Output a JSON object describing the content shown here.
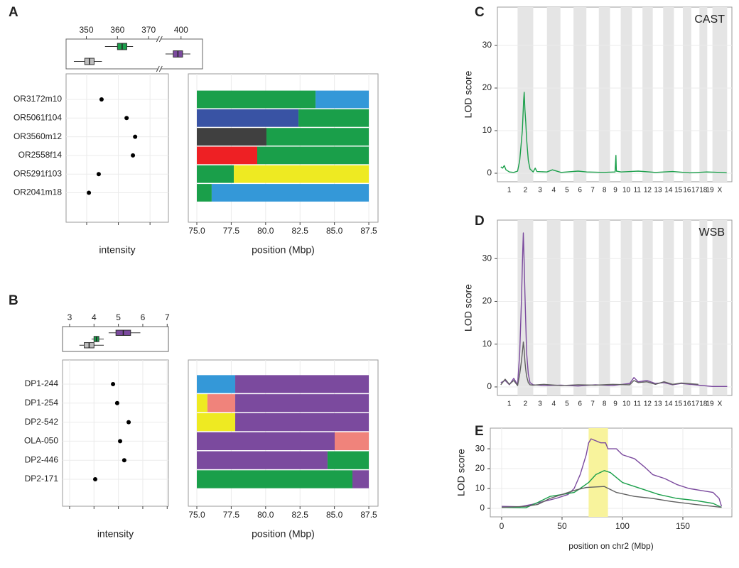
{
  "chart_data": [
    {
      "type": "box",
      "panel": "A",
      "xlim": [
        343.5,
        406.9
      ],
      "axis_break": [
        373,
        393.5
      ],
      "xticks": [
        350,
        360,
        370,
        400
      ],
      "boxes": [
        {
          "color": "#1a9f4a",
          "whisker_low": 356,
          "q1": 360,
          "median": 361.5,
          "q3": 363,
          "whisker_high": 365
        },
        {
          "color": "#7b4a9e",
          "whisker_low": 395,
          "q1": 397.5,
          "median": 399,
          "q3": 400.5,
          "whisker_high": 403
        },
        {
          "color": "#bdbdbd",
          "whisker_low": 346,
          "q1": 349.5,
          "median": 351,
          "q3": 352.5,
          "whisker_high": 355
        }
      ]
    },
    {
      "type": "dot",
      "xlim": [
        343.5,
        375.8
      ],
      "xlabel": "intensity",
      "categories": [
        "OR3172m10",
        "OR5061f104",
        "OR3560m12",
        "OR2558f14",
        "OR5291f103",
        "OR2041m18"
      ],
      "values": [
        354.7,
        362.6,
        365.3,
        364.6,
        353.8,
        350.7
      ]
    },
    {
      "type": "haplotype",
      "xlim": [
        74.38,
        88.17
      ],
      "xlabel": "position (Mbp)",
      "xticks": [
        {
          "value": 75,
          "label": "75.0"
        },
        77.5,
        {
          "value": 80,
          "label": "80.0"
        },
        82.5,
        {
          "value": 85,
          "label": "85.0"
        },
        87.5
      ],
      "rows": [
        {
          "segments": [
            {
              "color": "#1a9f4a",
              "start": 75,
              "end": 83.63
            },
            {
              "color": "#3498d8",
              "start": 83.63,
              "end": 87.5
            }
          ]
        },
        {
          "segments": [
            {
              "color": "#3953a4",
              "start": 75,
              "end": 82.39
            },
            {
              "color": "#1a9f4a",
              "start": 82.39,
              "end": 87.5
            }
          ]
        },
        {
          "segments": [
            {
              "color": "#404040",
              "start": 75,
              "end": 80.06
            },
            {
              "color": "#1a9f4a",
              "start": 80.06,
              "end": 87.5
            }
          ]
        },
        {
          "segments": [
            {
              "color": "#ee2024",
              "start": 75,
              "end": 79.39
            },
            {
              "color": "#1a9f4a",
              "start": 79.39,
              "end": 87.5
            }
          ]
        },
        {
          "segments": [
            {
              "color": "#1a9f4a",
              "start": 75,
              "end": 77.69
            },
            {
              "color": "#eeea22",
              "start": 77.69,
              "end": 87.5
            }
          ]
        },
        {
          "segments": [
            {
              "color": "#1a9f4a",
              "start": 75,
              "end": 76.08
            },
            {
              "color": "#3498d8",
              "start": 76.08,
              "end": 87.5
            }
          ]
        }
      ]
    },
    {
      "type": "box",
      "panel": "B",
      "xlim": [
        2.71,
        7.05
      ],
      "xticks": [
        3,
        4,
        5,
        6,
        7
      ],
      "boxes": [
        {
          "color": "#7b4a9e",
          "whisker_low": 4.6,
          "q1": 4.9,
          "median": 5.2,
          "q3": 5.5,
          "whisker_high": 5.9
        },
        {
          "color": "#1a9f4a",
          "whisker_low": 3.9,
          "q1": 4.0,
          "median": 4.1,
          "q3": 4.2,
          "whisker_high": 4.4
        },
        {
          "color": "#bdbdbd",
          "whisker_low": 3.4,
          "q1": 3.6,
          "median": 3.8,
          "q3": 4.0,
          "whisker_high": 4.4
        }
      ]
    },
    {
      "type": "dot",
      "xlim": [
        2.71,
        7.05
      ],
      "xlabel": "intensity",
      "categories": [
        "DP1-244",
        "DP1-254",
        "DP2-542",
        "OLA-050",
        "DP2-446",
        "DP2-171"
      ],
      "values": [
        4.78,
        4.95,
        5.42,
        5.07,
        5.24,
        4.05
      ]
    },
    {
      "type": "haplotype",
      "xlim": [
        74.38,
        88.17
      ],
      "xlabel": "position (Mbp)",
      "xticks": [
        {
          "value": 75,
          "label": "75.0"
        },
        77.5,
        {
          "value": 80,
          "label": "80.0"
        },
        82.5,
        {
          "value": 85,
          "label": "85.0"
        },
        87.5
      ],
      "rows": [
        {
          "segments": [
            {
              "color": "#3498d8",
              "start": 75,
              "end": 77.79
            },
            {
              "color": "#7b4a9e",
              "start": 77.79,
              "end": 87.5
            }
          ]
        },
        {
          "segments": [
            {
              "color": "#eeea22",
              "start": 75,
              "end": 75.77
            },
            {
              "color": "#f0837b",
              "start": 75.77,
              "end": 77.79
            },
            {
              "color": "#7b4a9e",
              "start": 77.79,
              "end": 87.5
            }
          ]
        },
        {
          "segments": [
            {
              "color": "#eeea22",
              "start": 75,
              "end": 77.79
            },
            {
              "color": "#7b4a9e",
              "start": 77.79,
              "end": 87.5
            }
          ]
        },
        {
          "segments": [
            {
              "color": "#7b4a9e",
              "start": 75,
              "end": 85.02
            },
            {
              "color": "#f0837b",
              "start": 85.02,
              "end": 87.5
            }
          ]
        },
        {
          "segments": [
            {
              "color": "#7b4a9e",
              "start": 75,
              "end": 84.5
            },
            {
              "color": "#1a9f4a",
              "start": 84.5,
              "end": 87.5
            }
          ]
        },
        {
          "segments": [
            {
              "color": "#1a9f4a",
              "start": 75,
              "end": 86.31
            },
            {
              "color": "#7b4a9e",
              "start": 86.31,
              "end": 87.5
            }
          ]
        }
      ]
    },
    {
      "type": "genome-line",
      "panel": "C",
      "label": "CAST",
      "ylabel": "LOD score",
      "xlim": [
        -40,
        2690
      ],
      "ylim": [
        -2,
        39
      ],
      "yticks": [
        0,
        10,
        20,
        30
      ],
      "chromosomes": [
        {
          "label": "1",
          "length": 195
        },
        {
          "label": "2",
          "length": 182
        },
        {
          "label": "3",
          "length": 160
        },
        {
          "label": "4",
          "length": 157
        },
        {
          "label": "5",
          "length": 152
        },
        {
          "label": "6",
          "length": 150
        },
        {
          "label": "7",
          "length": 145
        },
        {
          "label": "8",
          "length": 130
        },
        {
          "label": "9",
          "length": 125
        },
        {
          "label": "10",
          "length": 131
        },
        {
          "label": "11",
          "length": 122
        },
        {
          "label": "12",
          "length": 120
        },
        {
          "label": "13",
          "length": 121
        },
        {
          "label": "14",
          "length": 125
        },
        {
          "label": "15",
          "length": 104
        },
        {
          "label": "16",
          "length": 98
        },
        {
          "label": "17",
          "length": 95
        },
        {
          "label": "18",
          "length": 91
        },
        {
          "label": "19",
          "length": 61
        },
        {
          "label": "X",
          "length": 171
        }
      ],
      "series": [
        {
          "color": "#1a9f4a",
          "x": [
            0,
            20,
            40,
            60,
            100,
            150,
            195,
            220,
            250,
            265,
            272,
            280,
            290,
            300,
            320,
            340,
            377,
            400,
            420,
            537,
            600,
            700,
            900,
            1000,
            1200,
            1330,
            1340,
            1345,
            1400,
            1600,
            1800,
            2000,
            2200,
            2400,
            2550,
            2630
          ],
          "values": [
            1.5,
            1.2,
            1.8,
            0.8,
            0.3,
            0.2,
            0.5,
            3,
            10,
            17,
            19,
            15,
            12,
            8,
            3,
            1,
            0.3,
            1.2,
            0.4,
            0.3,
            0.8,
            0.2,
            0.5,
            0.3,
            0.2,
            0.3,
            4.2,
            0.5,
            0.3,
            0.5,
            0.2,
            0.4,
            0.1,
            0.3,
            0.2,
            0.1
          ]
        }
      ]
    },
    {
      "type": "genome-line",
      "panel": "D",
      "label": "WSB",
      "ylabel": "LOD score",
      "xlim": [
        -40,
        2690
      ],
      "ylim": [
        -2,
        39
      ],
      "yticks": [
        0,
        10,
        20,
        30
      ],
      "chromosomes": [
        {
          "label": "1",
          "length": 195
        },
        {
          "label": "2",
          "length": 182
        },
        {
          "label": "3",
          "length": 160
        },
        {
          "label": "4",
          "length": 157
        },
        {
          "label": "5",
          "length": 152
        },
        {
          "label": "6",
          "length": 150
        },
        {
          "label": "7",
          "length": 145
        },
        {
          "label": "8",
          "length": 130
        },
        {
          "label": "9",
          "length": 125
        },
        {
          "label": "10",
          "length": 131
        },
        {
          "label": "11",
          "length": 122
        },
        {
          "label": "12",
          "length": 120
        },
        {
          "label": "13",
          "length": 121
        },
        {
          "label": "14",
          "length": 125
        },
        {
          "label": "15",
          "length": 104
        },
        {
          "label": "16",
          "length": 98
        },
        {
          "label": "17",
          "length": 95
        },
        {
          "label": "18",
          "length": 91
        },
        {
          "label": "19",
          "length": 61
        },
        {
          "label": "X",
          "length": 171
        }
      ],
      "series": [
        {
          "color": "#7b4a9e",
          "x": [
            0,
            50,
            100,
            150,
            195,
            220,
            240,
            255,
            262,
            270,
            280,
            290,
            300,
            320,
            340,
            377,
            500,
            700,
            900,
            1100,
            1300,
            1500,
            1550,
            1600,
            1700,
            1800,
            1900,
            2000,
            2100,
            2300,
            2464,
            2635
          ],
          "values": [
            1,
            1.5,
            0.5,
            2,
            0.5,
            8,
            20,
            32,
            36,
            30,
            22,
            15,
            8,
            3,
            1,
            0.5,
            0.3,
            0.4,
            0.2,
            0.5,
            0.3,
            0.8,
            2.2,
            1.2,
            1.5,
            0.8,
            1,
            0.5,
            0.8,
            0.4,
            0.1,
            0.1
          ]
        },
        {
          "color": "#616161",
          "x": [
            0,
            50,
            100,
            150,
            195,
            220,
            240,
            255,
            262,
            270,
            280,
            290,
            300,
            320,
            340,
            377,
            500,
            700,
            900,
            1100,
            1300,
            1500,
            1550,
            1600,
            1700,
            1800,
            1900,
            2000,
            2100,
            2300
          ],
          "values": [
            0.5,
            1.8,
            0.6,
            1.5,
            0.3,
            3,
            6,
            9,
            10.5,
            9,
            6,
            4,
            2.5,
            1,
            0.5,
            0.4,
            0.6,
            0.3,
            0.5,
            0.4,
            0.6,
            0.5,
            1.5,
            1,
            1.2,
            0.6,
            1.2,
            0.6,
            0.9,
            0.6
          ]
        }
      ]
    },
    {
      "type": "line",
      "panel": "E",
      "ylabel": "LOD score",
      "xlabel": "position on chr2 (Mbp)",
      "xlim": [
        -9.4,
        190.6
      ],
      "ylim": [
        -4.3,
        40.4
      ],
      "xticks": [
        0,
        50,
        100,
        150
      ],
      "yticks": [
        0,
        10,
        20,
        30
      ],
      "highlight": [
        72,
        88
      ],
      "highlight_color": "#f8f39c",
      "series": [
        {
          "color": "#7b4a9e",
          "x": [
            0,
            15,
            25,
            35,
            45,
            55,
            60,
            65,
            70,
            72,
            74,
            78,
            82,
            86,
            88,
            95,
            100,
            110,
            118,
            125,
            135,
            145,
            155,
            165,
            175,
            180,
            182
          ],
          "values": [
            1,
            0.8,
            2,
            3.5,
            5,
            7,
            10,
            17,
            27,
            33,
            35,
            34,
            33,
            33,
            30,
            30,
            27,
            25,
            21,
            17,
            15,
            12,
            10,
            9,
            8,
            5,
            1
          ]
        },
        {
          "color": "#1a9f4a",
          "x": [
            0,
            20,
            30,
            40,
            50,
            60,
            65,
            72,
            78,
            85,
            90,
            100,
            110,
            120,
            130,
            145,
            160,
            175,
            182
          ],
          "values": [
            0.5,
            0.3,
            3,
            6,
            7,
            8,
            10,
            13,
            17,
            19,
            18,
            13,
            11,
            9,
            7,
            5,
            4,
            2.5,
            0.5
          ]
        },
        {
          "color": "#616161",
          "x": [
            0,
            20,
            30,
            40,
            50,
            60,
            70,
            85,
            95,
            110,
            125,
            140,
            160,
            175,
            182
          ],
          "values": [
            0.5,
            1,
            2,
            5,
            7,
            9,
            10.5,
            11,
            8,
            6,
            5,
            3.5,
            2,
            1,
            0.5
          ]
        }
      ]
    }
  ]
}
